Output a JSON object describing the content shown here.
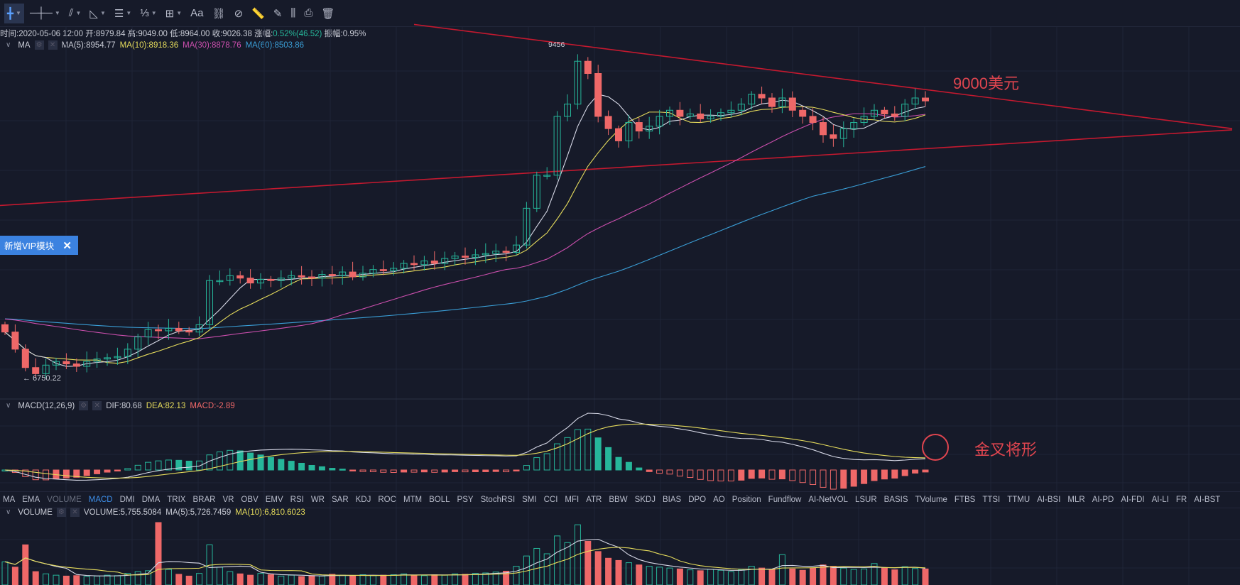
{
  "toolbar": {
    "tools": [
      {
        "icon": "crosshair-icon",
        "glyph": "╋",
        "caret": true,
        "active": true
      },
      {
        "icon": "horizontal-line-icon",
        "glyph": "─┼─",
        "caret": true
      },
      {
        "icon": "trend-line-icon",
        "glyph": "⫽",
        "caret": true
      },
      {
        "icon": "angle-icon",
        "glyph": "◺",
        "caret": true
      },
      {
        "icon": "parallel-lines-icon",
        "glyph": "☰",
        "caret": true
      },
      {
        "icon": "fibonacci-icon",
        "glyph": "⅓",
        "caret": true
      },
      {
        "icon": "rectangle-icon",
        "glyph": "⊞",
        "caret": true
      },
      {
        "icon": "text-icon",
        "glyph": "Aa",
        "caret": false
      },
      {
        "icon": "pattern-icon",
        "glyph": "⛓",
        "caret": false
      },
      {
        "icon": "magnet-icon",
        "glyph": "⊘",
        "caret": false
      },
      {
        "icon": "ruler-icon",
        "glyph": "📏",
        "caret": false
      },
      {
        "icon": "brush-icon",
        "glyph": "✎",
        "caret": false
      },
      {
        "icon": "candles-settings-icon",
        "glyph": "⫼",
        "caret": false
      },
      {
        "icon": "lock-icon",
        "glyph": "⎙",
        "caret": false
      },
      {
        "icon": "trash-icon",
        "glyph": "🗑",
        "caret": false
      }
    ]
  },
  "info": {
    "time": "时间:2020-05-06 12:00",
    "open": "开:8979.84",
    "high": "高:9049.00",
    "low": "低:8964.00",
    "close": "收:9026.38",
    "change_label": "涨幅:",
    "change_value": "0.52%(46.52)",
    "amplitude": "振幅:0.95%"
  },
  "ma_legend": {
    "name": "MA",
    "ma5": "MA(5):8954.77",
    "ma10": "MA(10):8918.36",
    "ma30": "MA(30):8878.76",
    "ma60": "MA(60):8503.86"
  },
  "macd_legend": {
    "name": "MACD(12,26,9)",
    "dif": "DIF:80.68",
    "dea": "DEA:82.13",
    "macd": "MACD:-2.89"
  },
  "volume_legend": {
    "name": "VOLUME",
    "volume": "VOLUME:5,755.5084",
    "ma5": "MA(5):5,726.7459",
    "ma10": "MA(10):6,810.6023"
  },
  "vip_banner": {
    "label": "新增VIP模块",
    "close": "✕"
  },
  "annotations": {
    "price_target": "9000美元",
    "golden_cross": "金叉将形",
    "high_label": "9456",
    "low_label": "← 6750.22"
  },
  "indicator_tabs": [
    "MA",
    "EMA",
    "VOLUME",
    "MACD",
    "DMI",
    "DMA",
    "TRIX",
    "BRAR",
    "VR",
    "OBV",
    "EMV",
    "RSI",
    "WR",
    "SAR",
    "KDJ",
    "ROC",
    "MTM",
    "BOLL",
    "PSY",
    "StochRSI",
    "SMI",
    "CCI",
    "MFI",
    "ATR",
    "BBW",
    "SKDJ",
    "BIAS",
    "DPO",
    "AO",
    "Position",
    "Fundflow",
    "AI-NetVOL",
    "LSUR",
    "BASIS",
    "TVolume",
    "FTBS",
    "TTSI",
    "TTMU",
    "AI-BSI",
    "MLR",
    "AI-PD",
    "AI-FDI",
    "AI-LI",
    "FR",
    "AI-BST"
  ],
  "selected_tab": "MACD",
  "dim_tab": "VOLUME",
  "colors": {
    "up": "#26b69a",
    "down": "#ef6868",
    "ma5": "#d6d8e6",
    "ma10": "#e6dc5c",
    "ma30": "#cc4fae",
    "ma60": "#3a9ed6",
    "trendline": "#c4192f",
    "annotation": "#e0454f",
    "accent": "#3b82e0",
    "background": "#161a29"
  },
  "chart_data": {
    "type": "candlestick",
    "price_high": 9456,
    "price_low": 6750.22,
    "closes": [
      7140,
      7000,
      6850,
      6800,
      6870,
      6900,
      6880,
      6860,
      6900,
      6920,
      6930,
      6940,
      7000,
      7100,
      7160,
      7150,
      7170,
      7150,
      7140,
      7200,
      7560,
      7560,
      7600,
      7580,
      7540,
      7570,
      7560,
      7580,
      7600,
      7590,
      7580,
      7610,
      7600,
      7630,
      7590,
      7620,
      7650,
      7640,
      7660,
      7700,
      7690,
      7720,
      7700,
      7740,
      7760,
      7750,
      7770,
      7780,
      7800,
      7790,
      7850,
      8150,
      8420,
      8420,
      8900,
      9000,
      9350,
      9250,
      8900,
      8800,
      8700,
      8850,
      8780,
      8820,
      8900,
      8950,
      8900,
      8920,
      8880,
      8900,
      8930,
      8950,
      9000,
      9080,
      9050,
      8980,
      9050,
      8950,
      8900,
      8850,
      8750,
      8720,
      8800,
      8850,
      8900,
      8950,
      8920,
      8900,
      9000,
      9050,
      9026
    ],
    "volumes": [
      5200,
      4000,
      9000,
      3000,
      2500,
      2200,
      2000,
      2100,
      1900,
      2000,
      2200,
      2100,
      2600,
      3000,
      3200,
      14000,
      3500,
      2400,
      2000,
      2600,
      9000,
      4000,
      3000,
      2500,
      2200,
      2600,
      2300,
      2000,
      2200,
      1900,
      2100,
      2000,
      2400,
      2200,
      2000,
      2300,
      2100,
      2200,
      2300,
      2500,
      2200,
      2100,
      2300,
      2200,
      2500,
      2400,
      2600,
      2700,
      2900,
      3100,
      4200,
      6500,
      8200,
      7000,
      11000,
      9500,
      13500,
      9800,
      7500,
      6000,
      5500,
      5000,
      4500,
      4200,
      4000,
      3800,
      3600,
      3400,
      3200,
      3500,
      3300,
      3000,
      3400,
      4200,
      3800,
      3500,
      6800,
      3600,
      3300,
      3800,
      4500,
      4200,
      3800,
      3500,
      3600,
      4800,
      3900,
      3400,
      4100,
      3700,
      3600
    ],
    "trendlines": [
      {
        "from_price_index": [
          40,
          9650
        ],
        "to_price_index": [
          120,
          8800
        ]
      },
      {
        "from_price_index": [
          -1,
          8170
        ],
        "to_price_index": [
          120,
          8790
        ]
      }
    ]
  }
}
